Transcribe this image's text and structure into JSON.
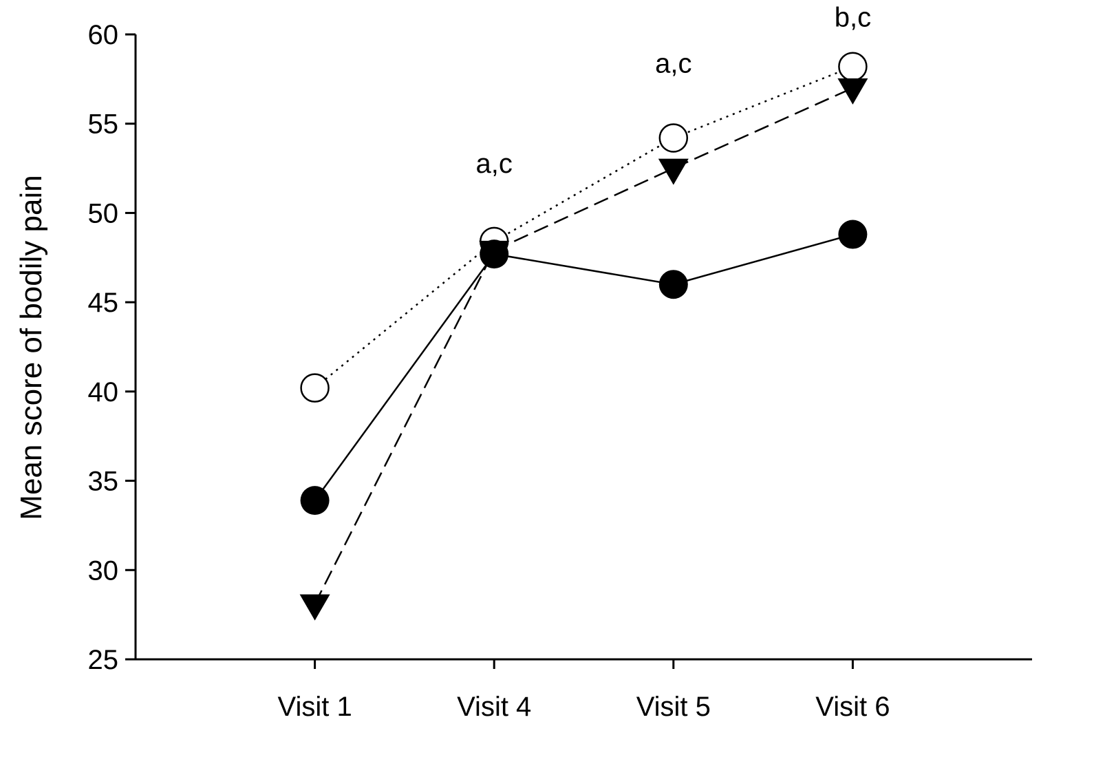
{
  "chart_data": {
    "type": "line",
    "title": "",
    "xlabel": "",
    "ylabel": "Mean score of bodily pain",
    "categories": [
      "Visit 1",
      "Visit 4",
      "Visit 5",
      "Visit 6"
    ],
    "ylim": [
      25,
      60
    ],
    "yticks": [
      25,
      30,
      35,
      40,
      45,
      50,
      55,
      60
    ],
    "grid": false,
    "legend": "none",
    "series": [
      {
        "marker": "open-circle",
        "line": "dotted",
        "values": [
          40.2,
          48.4,
          54.2,
          58.2
        ]
      },
      {
        "marker": "filled-circle",
        "line": "solid",
        "values": [
          33.9,
          47.7,
          46.0,
          48.8
        ]
      },
      {
        "marker": "filled-down-triangle",
        "line": "dashed",
        "values": [
          28.1,
          47.9,
          52.5,
          57.0
        ]
      }
    ],
    "annotations": [
      {
        "category": "Visit 4",
        "text": "a,c"
      },
      {
        "category": "Visit 5",
        "text": "a,c"
      },
      {
        "category": "Visit 6",
        "text": "b,c"
      }
    ],
    "colors": {
      "line": "#000000",
      "open_fill": "#ffffff"
    }
  }
}
